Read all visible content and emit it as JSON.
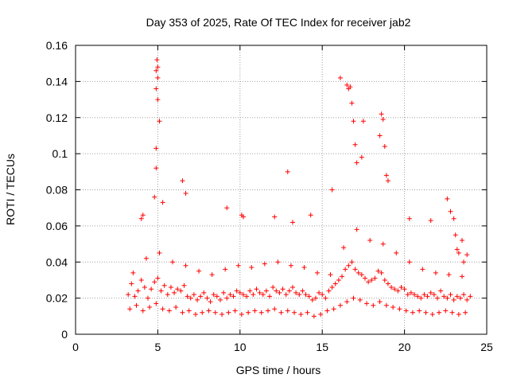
{
  "chart_data": {
    "type": "scatter",
    "title": "Day 353 of 2025, Rate Of TEC Index for receiver jab2",
    "xlabel": "GPS time / hours",
    "ylabel": "ROTI / TECUs",
    "xlim": [
      0,
      25
    ],
    "ylim": [
      0,
      0.16
    ],
    "x_ticks": [
      0,
      5,
      10,
      15,
      20,
      25
    ],
    "x_tick_labels": [
      "0",
      "5",
      "10",
      "15",
      "20",
      "25"
    ],
    "y_ticks": [
      0,
      0.02,
      0.04,
      0.06,
      0.08,
      0.1,
      0.12,
      0.14,
      0.16
    ],
    "y_tick_labels": [
      "0",
      "0.02",
      "0.04",
      "0.06",
      "0.08",
      "0.1",
      "0.12",
      "0.14",
      "0.16"
    ],
    "grid": true,
    "marker": "+",
    "color": "#ff0000",
    "series": [
      {
        "x": [
          3.2,
          3.4,
          3.6,
          3.8,
          4.0,
          4.2,
          4.4,
          4.6,
          4.8,
          5.0,
          5.2,
          5.4,
          5.6,
          5.8,
          6.0,
          6.2,
          6.4,
          6.6,
          6.8,
          7.0,
          7.2,
          7.4,
          7.6,
          7.8,
          8.0,
          8.2,
          8.4,
          8.6,
          8.8,
          9.0,
          9.2,
          9.4,
          9.6,
          9.8,
          10.0,
          10.2,
          10.4,
          10.6,
          10.8,
          11.0,
          11.2,
          11.4,
          11.6,
          11.8,
          12.0,
          12.2,
          12.4,
          12.6,
          12.8,
          13.0,
          13.2,
          13.4,
          13.6,
          13.8,
          14.0,
          14.2,
          14.4,
          14.6,
          14.8,
          15.0,
          15.2,
          15.4,
          15.6,
          15.8,
          16.0,
          16.2,
          16.4,
          16.6,
          16.8,
          17.0,
          17.2,
          17.4,
          17.6,
          17.8,
          18.0,
          18.2,
          18.4,
          18.6,
          18.8,
          19.0,
          19.2,
          19.4,
          19.6,
          19.8,
          20.0,
          20.2,
          20.4,
          20.6,
          20.8,
          21.0,
          21.2,
          21.4,
          21.6,
          21.8,
          22.0,
          22.2,
          22.4,
          22.6,
          22.8,
          23.0,
          23.2,
          23.4,
          23.6,
          23.8,
          24.0,
          3.3,
          3.7,
          4.1,
          4.5,
          4.9,
          5.3,
          5.7,
          6.1,
          6.5,
          6.9,
          7.3,
          7.7,
          8.1,
          8.5,
          8.9,
          9.3,
          9.7,
          10.1,
          10.5,
          10.9,
          11.3,
          11.7,
          12.1,
          12.5,
          12.9,
          13.3,
          13.7,
          14.1,
          14.5,
          14.9,
          15.3,
          15.7,
          16.1,
          16.5,
          16.9,
          17.3,
          17.7,
          18.1,
          18.5,
          18.9,
          19.3,
          19.7,
          20.1,
          20.5,
          20.9,
          21.3,
          21.7,
          22.1,
          22.5,
          22.9,
          23.3,
          23.7,
          3.5,
          4.3,
          5.1,
          5.9,
          6.7,
          7.5,
          8.3,
          9.1,
          9.9,
          10.7,
          11.5,
          12.3,
          13.1,
          13.9,
          14.7,
          15.5,
          16.3,
          17.1,
          17.9,
          18.7,
          19.5,
          20.3,
          21.1,
          21.9,
          22.7,
          23.5,
          4.0,
          4.1,
          4.8,
          4.9,
          4.9,
          4.9,
          4.95,
          5.0,
          5.0,
          5.0,
          4.9,
          5.1,
          5.3,
          6.5,
          6.7,
          9.2,
          10.1,
          10.2,
          12.1,
          12.9,
          13.2,
          14.3,
          15.6,
          16.1,
          16.5,
          16.6,
          16.7,
          16.8,
          16.9,
          17.0,
          17.1,
          17.4,
          17.5,
          18.5,
          18.6,
          18.7,
          18.8,
          18.9,
          19.0,
          20.3,
          21.6,
          22.6,
          22.8,
          23.0,
          23.1,
          23.2,
          23.3,
          23.5,
          23.6,
          23.8
        ],
        "y": [
          0.022,
          0.028,
          0.021,
          0.024,
          0.03,
          0.026,
          0.02,
          0.025,
          0.029,
          0.031,
          0.024,
          0.027,
          0.022,
          0.026,
          0.023,
          0.025,
          0.024,
          0.027,
          0.021,
          0.02,
          0.022,
          0.019,
          0.021,
          0.023,
          0.02,
          0.018,
          0.022,
          0.021,
          0.019,
          0.023,
          0.02,
          0.022,
          0.021,
          0.024,
          0.023,
          0.022,
          0.021,
          0.024,
          0.022,
          0.025,
          0.023,
          0.022,
          0.024,
          0.021,
          0.026,
          0.024,
          0.023,
          0.025,
          0.022,
          0.024,
          0.026,
          0.023,
          0.022,
          0.024,
          0.022,
          0.021,
          0.019,
          0.02,
          0.023,
          0.022,
          0.02,
          0.024,
          0.026,
          0.028,
          0.03,
          0.032,
          0.036,
          0.038,
          0.04,
          0.036,
          0.034,
          0.033,
          0.031,
          0.029,
          0.03,
          0.031,
          0.035,
          0.034,
          0.03,
          0.028,
          0.026,
          0.025,
          0.024,
          0.026,
          0.025,
          0.022,
          0.023,
          0.022,
          0.021,
          0.02,
          0.022,
          0.021,
          0.023,
          0.022,
          0.02,
          0.024,
          0.021,
          0.02,
          0.022,
          0.019,
          0.021,
          0.02,
          0.022,
          0.019,
          0.021,
          0.014,
          0.016,
          0.013,
          0.015,
          0.017,
          0.014,
          0.013,
          0.015,
          0.012,
          0.013,
          0.011,
          0.012,
          0.013,
          0.012,
          0.011,
          0.012,
          0.013,
          0.011,
          0.012,
          0.013,
          0.012,
          0.013,
          0.014,
          0.012,
          0.013,
          0.012,
          0.011,
          0.012,
          0.01,
          0.011,
          0.013,
          0.014,
          0.016,
          0.018,
          0.02,
          0.019,
          0.017,
          0.016,
          0.018,
          0.016,
          0.015,
          0.014,
          0.013,
          0.012,
          0.013,
          0.012,
          0.011,
          0.012,
          0.013,
          0.012,
          0.011,
          0.012,
          0.034,
          0.042,
          0.045,
          0.04,
          0.038,
          0.035,
          0.033,
          0.036,
          0.038,
          0.037,
          0.039,
          0.04,
          0.038,
          0.037,
          0.034,
          0.033,
          0.048,
          0.058,
          0.052,
          0.05,
          0.045,
          0.04,
          0.036,
          0.034,
          0.033,
          0.032,
          0.064,
          0.066,
          0.076,
          0.092,
          0.136,
          0.146,
          0.152,
          0.148,
          0.142,
          0.13,
          0.103,
          0.118,
          0.073,
          0.085,
          0.078,
          0.07,
          0.066,
          0.065,
          0.065,
          0.09,
          0.062,
          0.066,
          0.08,
          0.142,
          0.138,
          0.136,
          0.137,
          0.128,
          0.118,
          0.105,
          0.095,
          0.098,
          0.118,
          0.11,
          0.122,
          0.119,
          0.104,
          0.088,
          0.085,
          0.064,
          0.063,
          0.075,
          0.068,
          0.064,
          0.055,
          0.047,
          0.045,
          0.052,
          0.04,
          0.044
        ]
      }
    ]
  }
}
